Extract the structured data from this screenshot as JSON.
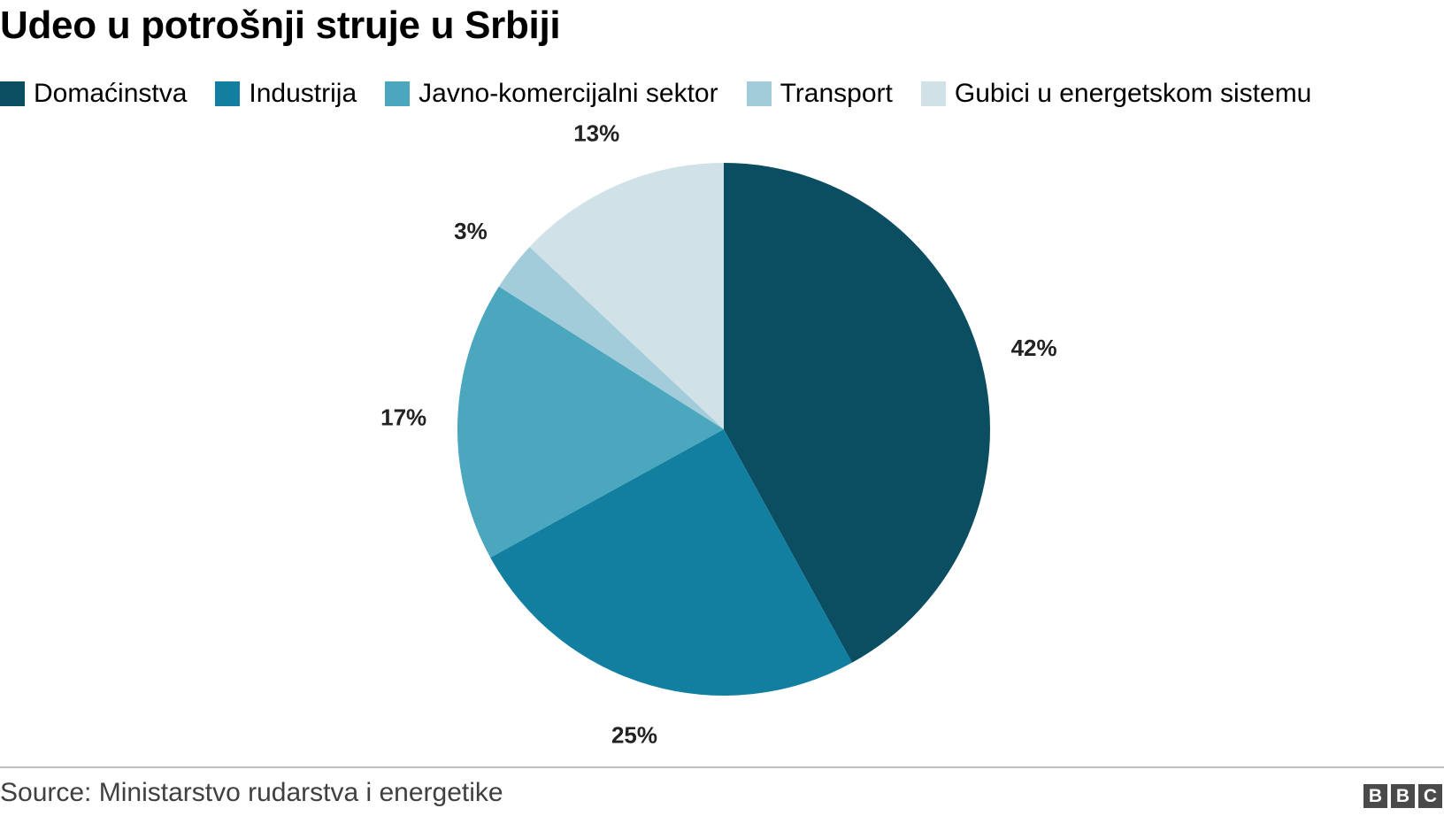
{
  "chart_data": {
    "type": "pie",
    "title": "Udeo u potrošnji struje u Srbiji",
    "legend_position": "top",
    "slices": [
      {
        "label": "Domaćinstva",
        "value": 42,
        "display": "42%",
        "color": "#0b4d61"
      },
      {
        "label": "Industrija",
        "value": 25,
        "display": "25%",
        "color": "#137fa0"
      },
      {
        "label": "Javno-komercijalni sektor",
        "value": 17,
        "display": "17%",
        "color": "#4aa7bd"
      },
      {
        "label": "Transport",
        "value": 3,
        "display": "3%",
        "color": "#a3ccda"
      },
      {
        "label": "Gubici u energetskom sistemu",
        "value": 13,
        "display": "13%",
        "color": "#d0e2e8"
      }
    ]
  },
  "footer": {
    "source": "Source: Ministarstvo rudarstva i energetike",
    "logo_letters": [
      "B",
      "B",
      "C"
    ]
  }
}
